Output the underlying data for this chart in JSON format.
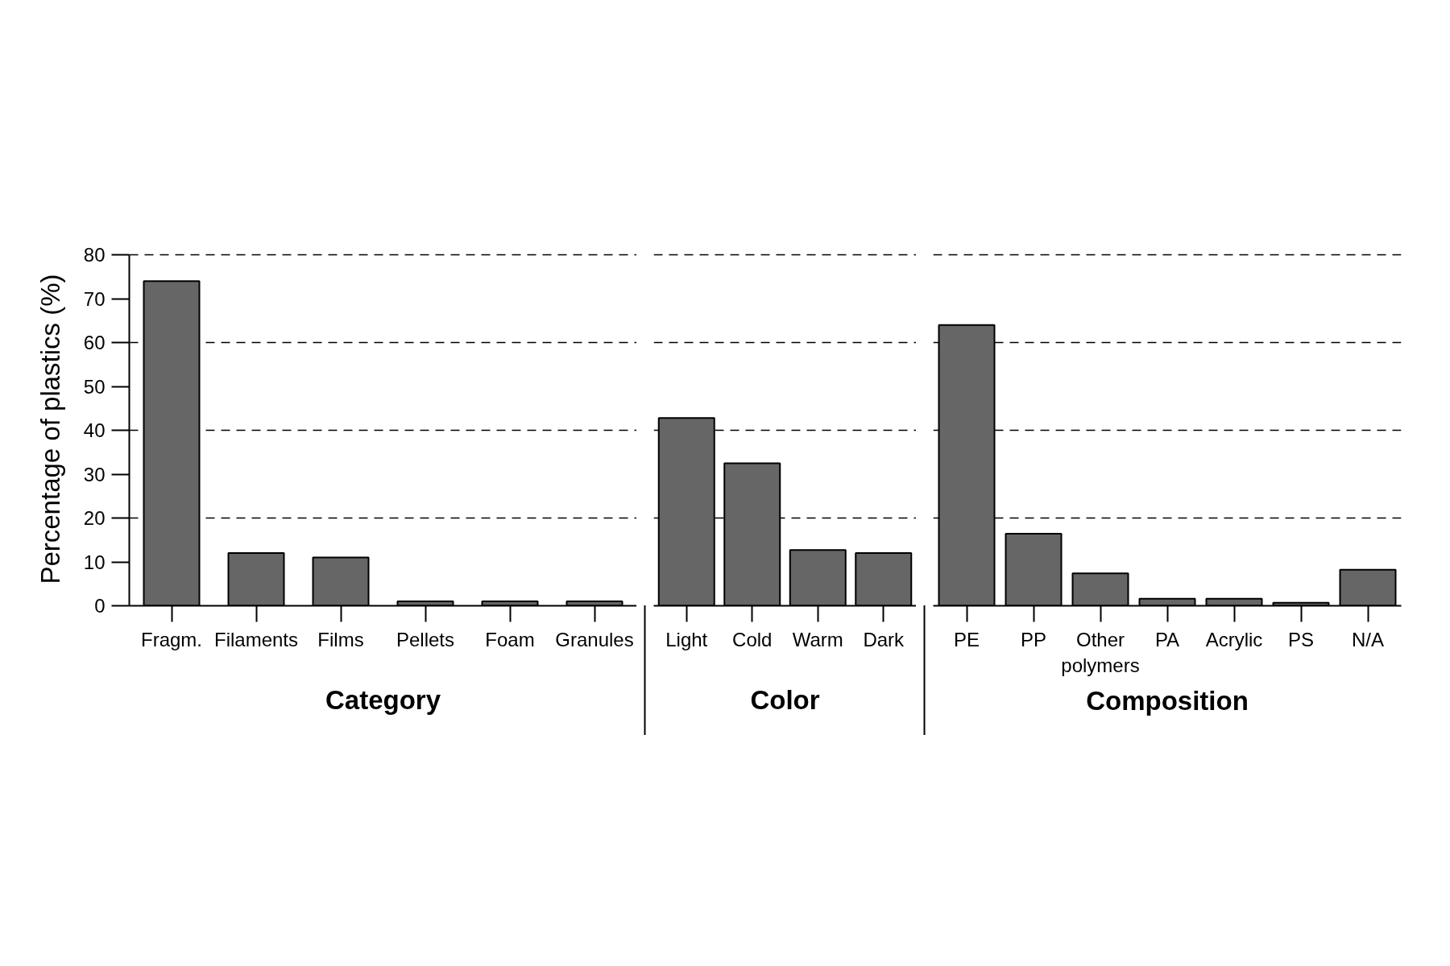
{
  "chart_data": [
    {
      "type": "bar",
      "xlabel": "Category",
      "ylabel": "Percentage of plastics (%)",
      "categories": [
        "Fragm.",
        "Filaments",
        "Films",
        "Pellets",
        "Foam",
        "Granules"
      ],
      "values": [
        74,
        12,
        11,
        1,
        1,
        1
      ],
      "color": "#666666",
      "ylim": [
        0,
        80
      ],
      "yticks": [
        0,
        10,
        20,
        30,
        40,
        50,
        60,
        70,
        80
      ],
      "ref_lines": [
        {
          "axis": "y",
          "value": 20,
          "line_style": "dashed",
          "color": "#000000"
        },
        {
          "axis": "y",
          "value": 40,
          "line_style": "dashed",
          "color": "#000000"
        },
        {
          "axis": "y",
          "value": 60,
          "line_style": "dashed",
          "color": "#000000"
        }
      ]
    },
    {
      "type": "bar",
      "xlabel": "Color",
      "categories": [
        "Light",
        "Cold",
        "Warm",
        "Dark"
      ],
      "values": [
        42.8,
        32.5,
        12.7,
        12.0
      ],
      "color": "#666666",
      "ylim": [
        0,
        80
      ],
      "tick_labels": "x",
      "ref_lines": [
        {
          "axis": "y",
          "value": 20,
          "line_style": "dashed",
          "color": "#000000"
        },
        {
          "axis": "y",
          "value": 40,
          "line_style": "dashed",
          "color": "#000000"
        },
        {
          "axis": "y",
          "value": 60,
          "line_style": "dashed",
          "color": "#000000"
        }
      ]
    },
    {
      "type": "bar",
      "xlabel": "Composition",
      "categories": [
        "PE",
        "PP",
        "Other polymers",
        "PA",
        "Acrylic",
        "PS",
        "N/A"
      ],
      "values": [
        64,
        16.4,
        7.4,
        1.6,
        1.6,
        0.7,
        8.2
      ],
      "color": "#666666",
      "ylim": [
        0,
        80
      ],
      "tick_labels": "x",
      "ref_lines": [
        {
          "axis": "y",
          "value": 20,
          "line_style": "dashed",
          "color": "#000000"
        },
        {
          "axis": "y",
          "value": 40,
          "line_style": "dashed",
          "color": "#000000"
        },
        {
          "axis": "y",
          "value": 60,
          "line_style": "dashed",
          "color": "#000000"
        }
      ]
    }
  ]
}
